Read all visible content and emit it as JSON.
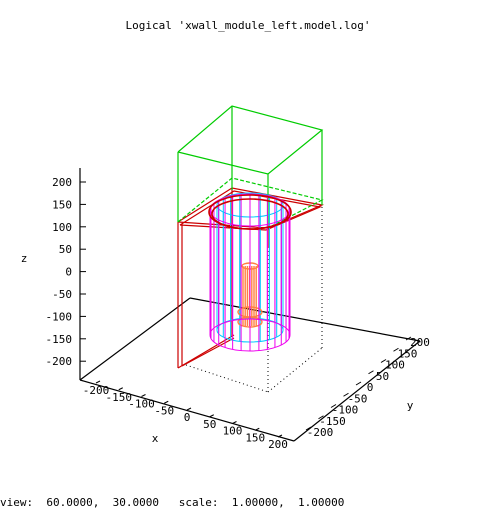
{
  "title": "Logical 'xwall_module_left.model.log'",
  "axes": {
    "x_label": "x",
    "y_label": "y",
    "z_label": "z",
    "x_ticks": [
      "-200",
      "-150",
      "-100",
      "-50",
      "0",
      "50",
      "100",
      "150",
      "200"
    ],
    "y_ticks": [
      "-200",
      "-150",
      "-100",
      "-50",
      "0",
      "50",
      "100",
      "150",
      "200"
    ],
    "z_ticks": [
      "200",
      "150",
      "100",
      "50",
      "0",
      "-50",
      "-100",
      "-150",
      "-200"
    ]
  },
  "status": {
    "text": "view:  60.0000,  30.0000   scale:  1.00000,  1.00000"
  },
  "colors": {
    "green_box": "#00cc00",
    "red_box": "#cc0000",
    "magenta": "#ee00ee",
    "cyan": "#00c8ff",
    "orange": "#ff8040",
    "axis": "#000000",
    "dotted": "#000000"
  }
}
